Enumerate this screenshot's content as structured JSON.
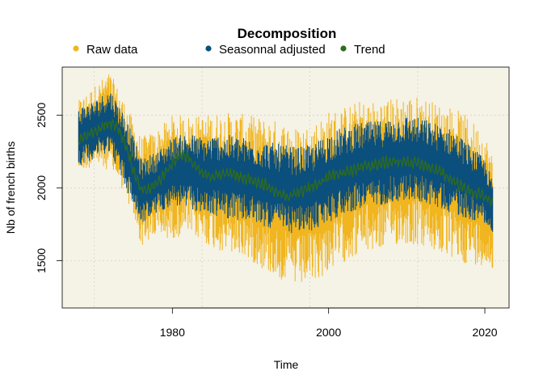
{
  "chart_data": {
    "type": "line",
    "title": "Decomposition",
    "xlabel": "Time",
    "ylabel": "Nb of french births",
    "xlim": [
      1965.9,
      2023.1
    ],
    "ylim": [
      1175,
      2830
    ],
    "x_ticks": [
      1980,
      2000,
      2020
    ],
    "x_tick_labels": [
      "1980",
      "2000",
      "2020"
    ],
    "y_ticks": [
      1500,
      2000,
      2500
    ],
    "y_tick_labels": [
      "1500",
      "2000",
      "2500"
    ],
    "grid": true,
    "legend_position": "top",
    "background_color": "#f5f2e6",
    "series": [
      {
        "name": "Raw data",
        "color": "#f0b51f",
        "style": "daily-band",
        "x": [
          1968,
          1970,
          1972,
          1974,
          1976,
          1978,
          1980,
          1982,
          1984,
          1986,
          1988,
          1990,
          1992,
          1994,
          1996,
          1998,
          2000,
          2002,
          2004,
          2006,
          2008,
          2010,
          2012,
          2014,
          2016,
          2018,
          2020,
          2021
        ],
        "low": [
          2100,
          2150,
          2120,
          1950,
          1600,
          1650,
          1650,
          1680,
          1620,
          1560,
          1530,
          1500,
          1420,
          1360,
          1310,
          1340,
          1420,
          1490,
          1540,
          1560,
          1600,
          1610,
          1590,
          1540,
          1500,
          1470,
          1470,
          1390
        ],
        "high": [
          2600,
          2700,
          2800,
          2580,
          2350,
          2400,
          2500,
          2500,
          2500,
          2520,
          2520,
          2500,
          2480,
          2460,
          2420,
          2450,
          2530,
          2560,
          2600,
          2600,
          2620,
          2640,
          2630,
          2580,
          2560,
          2480,
          2380,
          2220
        ]
      },
      {
        "name": "Seasonnal adjusted",
        "color": "#0b4f7d",
        "style": "daily-band",
        "x": [
          1968,
          1970,
          1972,
          1974,
          1976,
          1978,
          1980,
          1982,
          1984,
          1986,
          1988,
          1990,
          1992,
          1994,
          1996,
          1998,
          2000,
          2002,
          2004,
          2006,
          2008,
          2010,
          2012,
          2014,
          2016,
          2018,
          2020,
          2021
        ],
        "low": [
          2150,
          2200,
          2250,
          2000,
          1750,
          1820,
          1880,
          1850,
          1820,
          1800,
          1780,
          1760,
          1730,
          1700,
          1680,
          1700,
          1760,
          1820,
          1850,
          1870,
          1900,
          1910,
          1900,
          1860,
          1820,
          1780,
          1760,
          1650
        ],
        "high": [
          2560,
          2600,
          2680,
          2500,
          2200,
          2250,
          2350,
          2380,
          2350,
          2370,
          2360,
          2340,
          2320,
          2300,
          2280,
          2300,
          2380,
          2420,
          2450,
          2460,
          2480,
          2500,
          2480,
          2440,
          2400,
          2300,
          2200,
          2050
        ]
      },
      {
        "name": "Trend",
        "color": "#2e6b1f",
        "style": "line",
        "x": [
          1968,
          1969,
          1970,
          1971,
          1972,
          1973,
          1974,
          1975,
          1976,
          1977,
          1978,
          1979,
          1980,
          1981,
          1982,
          1983,
          1984,
          1985,
          1986,
          1987,
          1988,
          1989,
          1990,
          1991,
          1992,
          1993,
          1994,
          1995,
          1996,
          1997,
          1998,
          1999,
          2000,
          2001,
          2002,
          2003,
          2004,
          2005,
          2006,
          2007,
          2008,
          2009,
          2010,
          2011,
          2012,
          2013,
          2014,
          2015,
          2016,
          2017,
          2018,
          2019,
          2020,
          2021
        ],
        "y": [
          2330,
          2360,
          2390,
          2420,
          2450,
          2420,
          2300,
          2120,
          1980,
          1990,
          2030,
          2100,
          2170,
          2230,
          2210,
          2140,
          2090,
          2080,
          2090,
          2100,
          2090,
          2070,
          2060,
          2040,
          2020,
          1980,
          1950,
          1945,
          1960,
          1990,
          2010,
          2040,
          2080,
          2100,
          2110,
          2120,
          2140,
          2150,
          2160,
          2170,
          2180,
          2180,
          2180,
          2170,
          2160,
          2140,
          2120,
          2080,
          2050,
          2010,
          1980,
          1960,
          1940,
          1900
        ]
      }
    ]
  }
}
